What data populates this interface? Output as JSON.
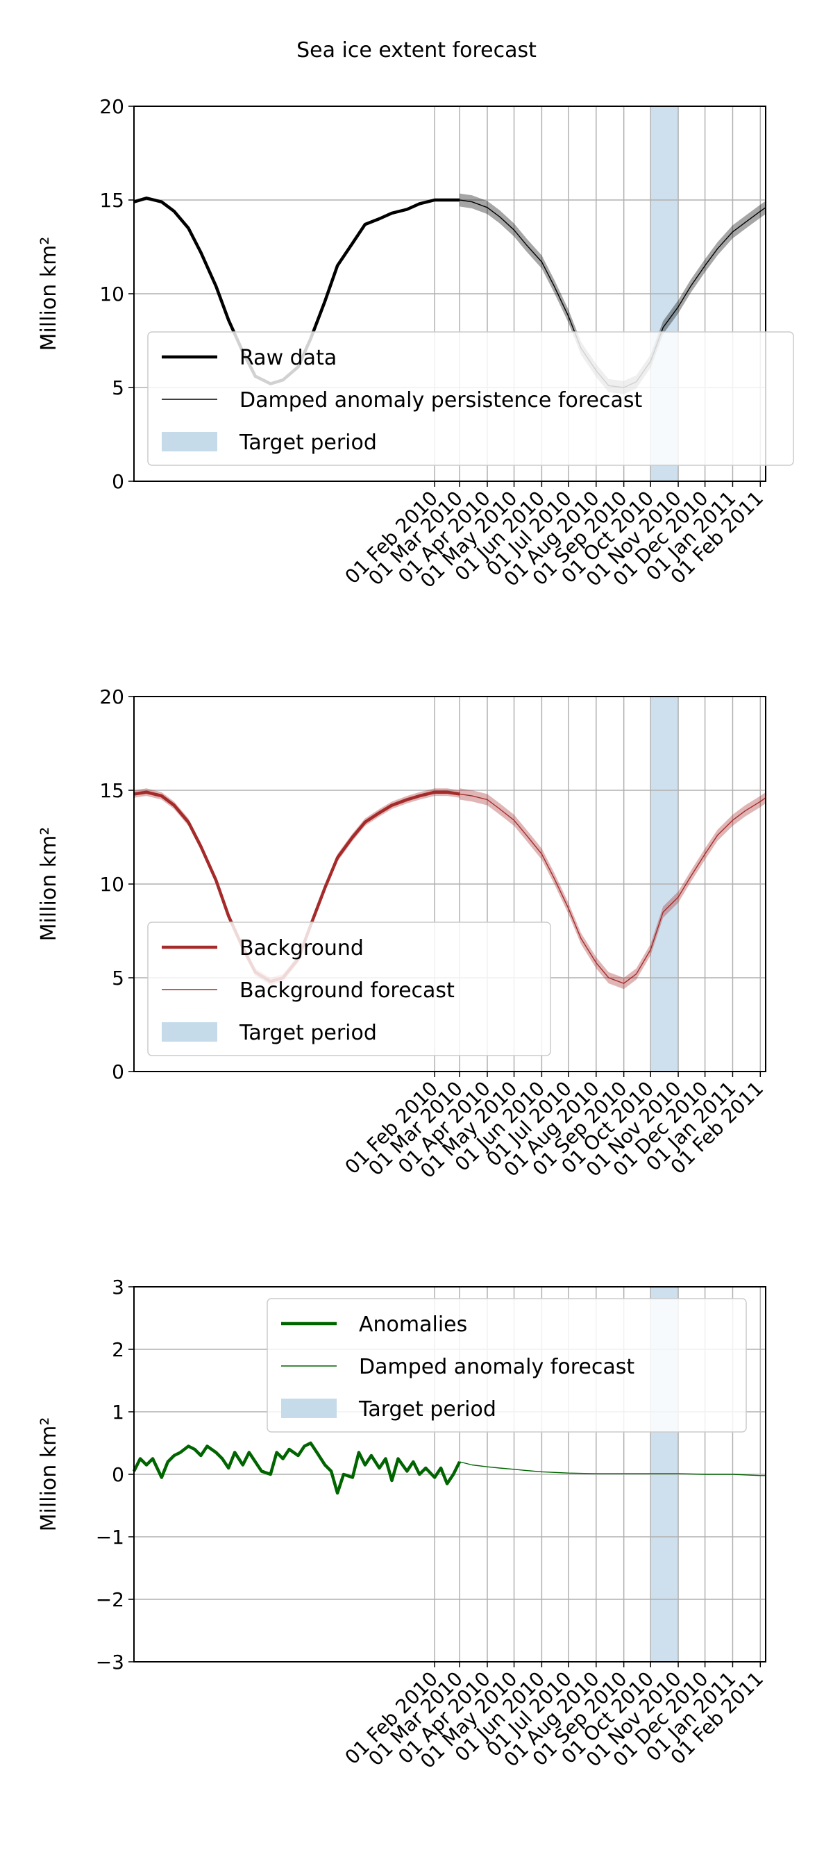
{
  "figure": {
    "title": "Sea ice extent forecast"
  },
  "x_axis": {
    "ticks": [
      "01 Feb 2010",
      "01 Mar 2010",
      "01 Apr 2010",
      "01 May 2010",
      "01 Jun 2010",
      "01 Jul 2010",
      "01 Aug 2010",
      "01 Sep 2010",
      "01 Oct 2010",
      "01 Nov 2010",
      "01 Dec 2010",
      "01 Jan 2011",
      "01 Feb 2011"
    ],
    "range": [
      "2009-03-01",
      "2011-02-07"
    ]
  },
  "target_period": {
    "start": "2010-10-01",
    "end": "2010-11-01",
    "color": "#c6dbea"
  },
  "chart_data": [
    {
      "type": "line",
      "ylabel": "Million km²",
      "ylim": [
        0,
        20
      ],
      "yticks": [
        0,
        5,
        10,
        15,
        20
      ],
      "grid": true,
      "legend_placement": "lower-right",
      "series": [
        {
          "name": "Raw data",
          "color": "#000000",
          "role": "observed",
          "x": [
            "2009-03-01",
            "2009-03-15",
            "2009-04-01",
            "2009-04-15",
            "2009-05-01",
            "2009-05-15",
            "2009-06-01",
            "2009-06-15",
            "2009-07-01",
            "2009-07-15",
            "2009-08-01",
            "2009-08-15",
            "2009-09-01",
            "2009-09-15",
            "2009-10-01",
            "2009-10-15",
            "2009-11-01",
            "2009-11-15",
            "2009-12-01",
            "2009-12-15",
            "2010-01-01",
            "2010-01-15",
            "2010-02-01",
            "2010-02-15",
            "2010-03-01"
          ],
          "y": [
            14.9,
            15.1,
            14.9,
            14.4,
            13.5,
            12.2,
            10.4,
            8.6,
            6.9,
            5.6,
            5.2,
            5.4,
            6.1,
            7.6,
            9.6,
            11.5,
            12.7,
            13.7,
            14.0,
            14.3,
            14.5,
            14.8,
            15.0,
            15.0,
            15.0
          ]
        },
        {
          "name": "Damped anomaly persistence forecast",
          "color": "#000000",
          "role": "forecast",
          "x": [
            "2010-03-01",
            "2010-03-15",
            "2010-04-01",
            "2010-04-15",
            "2010-05-01",
            "2010-05-15",
            "2010-06-01",
            "2010-06-15",
            "2010-07-01",
            "2010-07-15",
            "2010-08-01",
            "2010-08-15",
            "2010-09-01",
            "2010-09-15",
            "2010-10-01",
            "2010-10-15",
            "2010-11-01",
            "2010-11-15",
            "2010-12-01",
            "2010-12-15",
            "2011-01-01",
            "2011-01-15",
            "2011-02-01",
            "2011-02-07"
          ],
          "y": [
            15.0,
            14.9,
            14.6,
            14.1,
            13.4,
            12.6,
            11.7,
            10.4,
            8.8,
            7.1,
            5.9,
            5.1,
            5.0,
            5.3,
            6.4,
            8.2,
            9.3,
            10.4,
            11.5,
            12.4,
            13.3,
            13.8,
            14.4,
            14.6
          ],
          "band": 0.35
        }
      ]
    },
    {
      "type": "line",
      "ylabel": "Million km²",
      "ylim": [
        0,
        20
      ],
      "yticks": [
        0,
        5,
        10,
        15,
        20
      ],
      "grid": true,
      "legend_placement": "lower-left",
      "series": [
        {
          "name": "Background",
          "color": "#a52a2a",
          "role": "observed",
          "x": [
            "2009-03-01",
            "2009-03-15",
            "2009-04-01",
            "2009-04-15",
            "2009-05-01",
            "2009-05-15",
            "2009-06-01",
            "2009-06-15",
            "2009-07-01",
            "2009-07-15",
            "2009-08-01",
            "2009-08-15",
            "2009-09-01",
            "2009-09-15",
            "2009-10-01",
            "2009-10-15",
            "2009-11-01",
            "2009-11-15",
            "2009-12-01",
            "2009-12-15",
            "2010-01-01",
            "2010-01-15",
            "2010-02-01",
            "2010-02-15",
            "2010-03-01"
          ],
          "y": [
            14.8,
            14.9,
            14.7,
            14.2,
            13.3,
            12.0,
            10.2,
            8.3,
            6.6,
            5.3,
            4.8,
            5.0,
            6.0,
            7.8,
            9.8,
            11.4,
            12.5,
            13.3,
            13.8,
            14.2,
            14.5,
            14.7,
            14.9,
            14.9,
            14.8
          ],
          "band": 0.2
        },
        {
          "name": "Background forecast",
          "color": "#a52a2a",
          "role": "forecast",
          "x": [
            "2010-03-01",
            "2010-03-15",
            "2010-04-01",
            "2010-04-15",
            "2010-05-01",
            "2010-05-15",
            "2010-06-01",
            "2010-06-15",
            "2010-07-01",
            "2010-07-15",
            "2010-08-01",
            "2010-08-15",
            "2010-09-01",
            "2010-09-15",
            "2010-10-01",
            "2010-10-15",
            "2010-11-01",
            "2010-11-15",
            "2010-12-01",
            "2010-12-15",
            "2011-01-01",
            "2011-01-15",
            "2011-02-01",
            "2011-02-07"
          ],
          "y": [
            14.8,
            14.7,
            14.5,
            14.0,
            13.4,
            12.6,
            11.6,
            10.3,
            8.7,
            7.1,
            5.8,
            5.0,
            4.7,
            5.2,
            6.5,
            8.5,
            9.3,
            10.4,
            11.6,
            12.6,
            13.4,
            13.9,
            14.4,
            14.6
          ],
          "band": 0.3
        }
      ]
    },
    {
      "type": "line",
      "ylabel": "Million km²",
      "ylim": [
        -3,
        3
      ],
      "yticks": [
        -3,
        -2,
        -1,
        0,
        1,
        2,
        3
      ],
      "grid": true,
      "legend_placement": "upper-right",
      "series": [
        {
          "name": "Anomalies",
          "color": "#006400",
          "role": "observed",
          "x": [
            "2009-03-01",
            "2009-03-08",
            "2009-03-15",
            "2009-03-22",
            "2009-04-01",
            "2009-04-08",
            "2009-04-15",
            "2009-04-22",
            "2009-05-01",
            "2009-05-08",
            "2009-05-15",
            "2009-05-22",
            "2009-06-01",
            "2009-06-08",
            "2009-06-15",
            "2009-06-22",
            "2009-07-01",
            "2009-07-08",
            "2009-07-15",
            "2009-07-22",
            "2009-08-01",
            "2009-08-08",
            "2009-08-15",
            "2009-08-22",
            "2009-09-01",
            "2009-09-08",
            "2009-09-15",
            "2009-09-22",
            "2009-10-01",
            "2009-10-08",
            "2009-10-15",
            "2009-10-22",
            "2009-11-01",
            "2009-11-08",
            "2009-11-15",
            "2009-11-22",
            "2009-12-01",
            "2009-12-08",
            "2009-12-15",
            "2009-12-22",
            "2010-01-01",
            "2010-01-08",
            "2010-01-15",
            "2010-01-22",
            "2010-02-01",
            "2010-02-08",
            "2010-02-15",
            "2010-02-22",
            "2010-03-01"
          ],
          "y": [
            0.05,
            0.25,
            0.15,
            0.25,
            -0.05,
            0.2,
            0.3,
            0.35,
            0.45,
            0.4,
            0.3,
            0.45,
            0.35,
            0.25,
            0.1,
            0.35,
            0.15,
            0.35,
            0.2,
            0.05,
            0.0,
            0.35,
            0.25,
            0.4,
            0.3,
            0.45,
            0.5,
            0.35,
            0.15,
            0.05,
            -0.3,
            0.0,
            -0.05,
            0.35,
            0.15,
            0.3,
            0.1,
            0.25,
            -0.1,
            0.25,
            0.05,
            0.2,
            0.0,
            0.1,
            -0.05,
            0.1,
            -0.15,
            0.0,
            0.2
          ]
        },
        {
          "name": "Damped anomaly forecast",
          "color": "#006400",
          "role": "forecast",
          "x": [
            "2010-03-01",
            "2010-03-15",
            "2010-04-01",
            "2010-04-15",
            "2010-05-01",
            "2010-05-15",
            "2010-06-01",
            "2010-07-01",
            "2010-08-01",
            "2010-09-01",
            "2010-10-01",
            "2010-11-01",
            "2010-12-01",
            "2011-01-01",
            "2011-02-01",
            "2011-02-07"
          ],
          "y": [
            0.2,
            0.15,
            0.12,
            0.1,
            0.08,
            0.06,
            0.04,
            0.02,
            0.01,
            0.01,
            0.01,
            0.01,
            0.0,
            0.0,
            -0.02,
            -0.02
          ]
        }
      ]
    }
  ],
  "legend_patch_label": "Target period"
}
